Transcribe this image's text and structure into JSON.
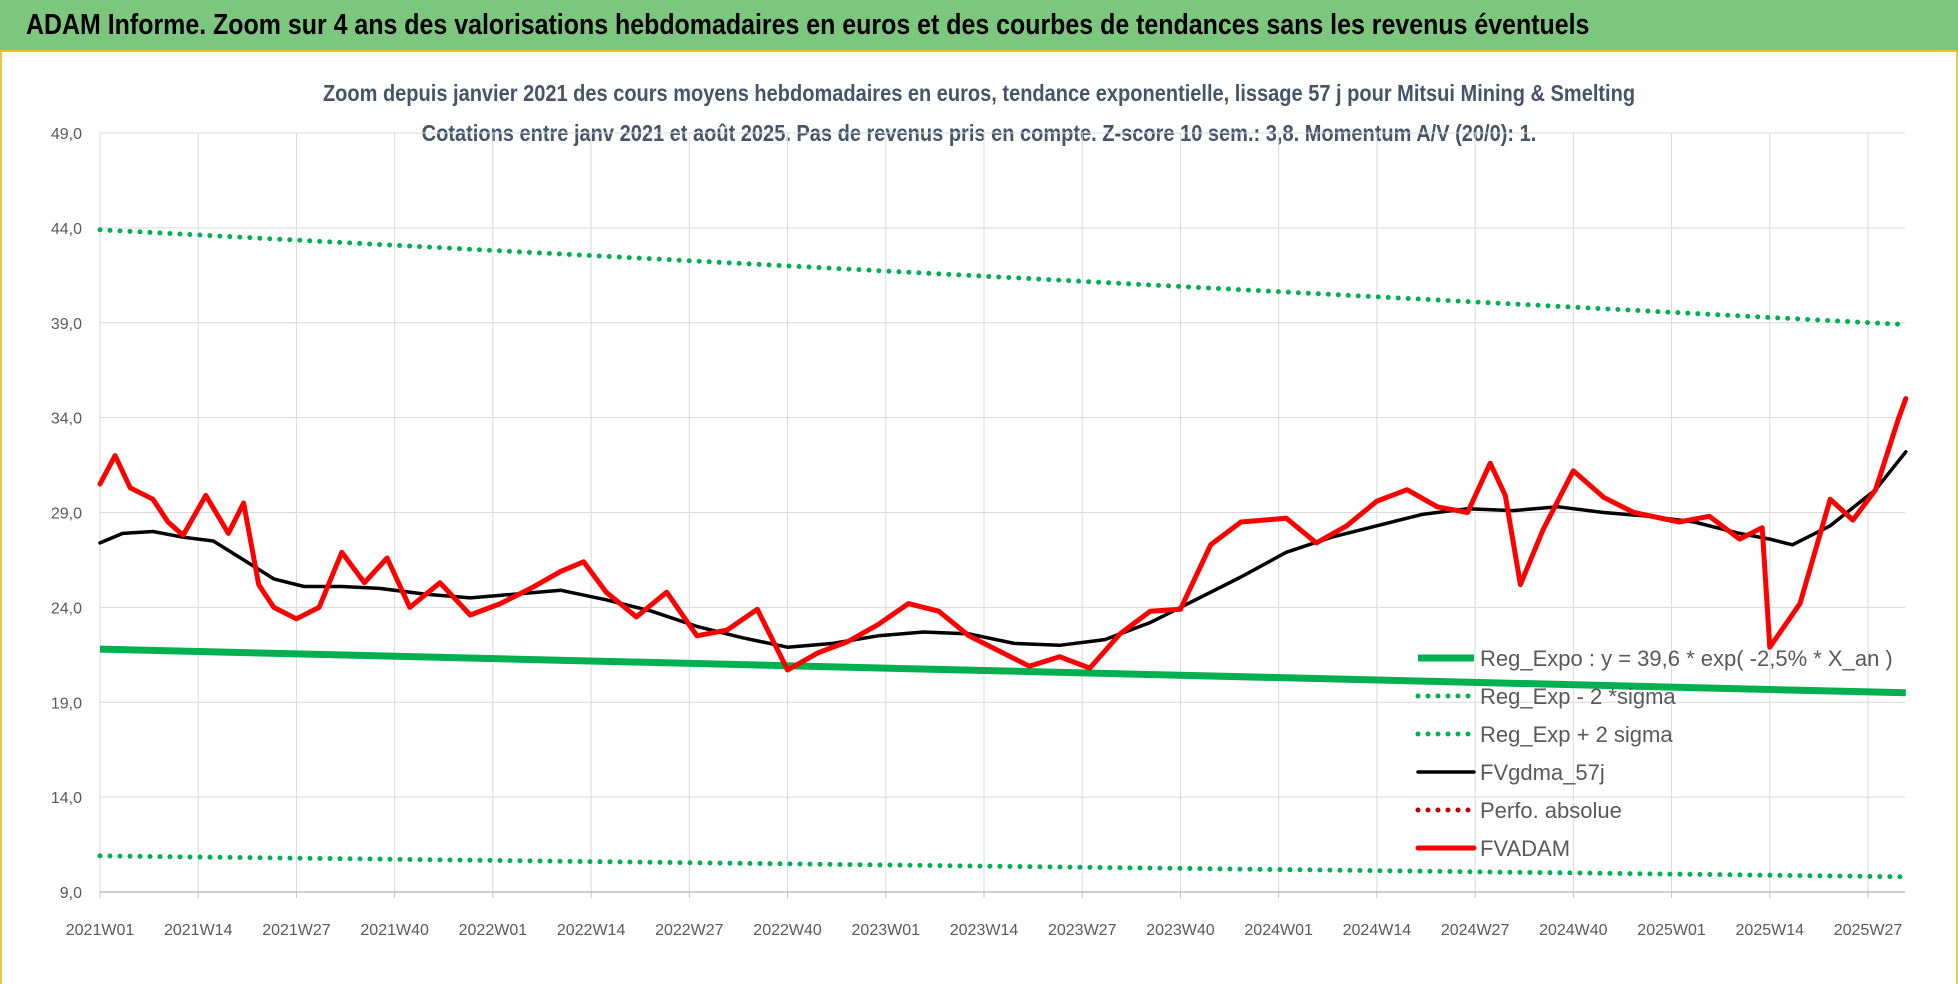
{
  "banner": {
    "title": "ADAM Informe. Zoom sur 4 ans des valorisations hebdomadaires en euros et des courbes de tendances sans les revenus éventuels"
  },
  "chart_data": {
    "type": "line",
    "title": "Zoom depuis janvier 2021 des cours moyens hebdomadaires en euros, tendance exponentielle, lissage 57 j pour Mitsui Mining & Smelting",
    "subtitle": "Cotations entre janv 2021 et août 2025.  Pas de revenus pris en compte. Z-score 10 sem.: 3,8. Momentum A/V (20/0): 1.",
    "xlabel": "",
    "ylabel": "",
    "ylim": [
      9,
      49
    ],
    "y_ticks": [
      "9,0",
      "14,0",
      "19,0",
      "24,0",
      "29,0",
      "34,0",
      "39,0",
      "44,0",
      "49,0"
    ],
    "x_tick_labels": [
      "2021W01",
      "2021W14",
      "2021W27",
      "2021W40",
      "2022W01",
      "2022W14",
      "2022W27",
      "2022W40",
      "2023W01",
      "2023W14",
      "2023W27",
      "2023W40",
      "2024W01",
      "2024W14",
      "2024W27",
      "2024W40",
      "2025W01",
      "2025W14",
      "2025W27"
    ],
    "grid": true,
    "legend_position": "bottom-right",
    "series": [
      {
        "name": "Reg_Expo : y = 39,6 * exp( -2,5% *  X_an )",
        "color": "#00b050",
        "style": "solid",
        "x": [
          "2021W01",
          "2025W32"
        ],
        "values": [
          21.8,
          19.5
        ]
      },
      {
        "name": "Reg_Exp - 2 *sigma",
        "color": "#00b050",
        "style": "dotted",
        "x": [
          "2021W01",
          "2025W32"
        ],
        "values": [
          10.9,
          9.8
        ]
      },
      {
        "name": "Reg_Exp + 2 sigma",
        "color": "#00b050",
        "style": "dotted",
        "x": [
          "2021W01",
          "2025W32"
        ],
        "values": [
          43.9,
          38.9
        ]
      },
      {
        "name": "FVgdma_57j",
        "color": "#000000",
        "style": "solid",
        "x": [
          "2021W01",
          "2021W04",
          "2021W08",
          "2021W12",
          "2021W16",
          "2021W20",
          "2021W24",
          "2021W28",
          "2021W33",
          "2021W38",
          "2021W44",
          "2021W50",
          "2022W04",
          "2022W10",
          "2022W16",
          "2022W22",
          "2022W28",
          "2022W34",
          "2022W40",
          "2022W46",
          "2022W52",
          "2023W06",
          "2023W12",
          "2023W18",
          "2023W24",
          "2023W30",
          "2023W36",
          "2023W42",
          "2023W48",
          "2024W02",
          "2024W08",
          "2024W14",
          "2024W20",
          "2024W26",
          "2024W32",
          "2024W38",
          "2024W44",
          "2024W50",
          "2025W04",
          "2025W10",
          "2025W14",
          "2025W17",
          "2025W22",
          "2025W28",
          "2025W32"
        ],
        "values": [
          27.4,
          27.9,
          28.0,
          27.7,
          27.5,
          26.5,
          25.5,
          25.1,
          25.1,
          25.0,
          24.7,
          24.5,
          24.7,
          24.9,
          24.4,
          23.8,
          23.0,
          22.4,
          21.9,
          22.1,
          22.5,
          22.7,
          22.6,
          22.1,
          22.0,
          22.3,
          23.2,
          24.4,
          25.6,
          26.9,
          27.7,
          28.3,
          28.9,
          29.2,
          29.1,
          29.3,
          29.0,
          28.8,
          28.5,
          27.9,
          27.6,
          27.3,
          28.3,
          30.2,
          32.2
        ]
      },
      {
        "name": "Perfo. absolue",
        "color": "#c00000",
        "style": "dotted",
        "x": [],
        "values": []
      },
      {
        "name": "FVADAM",
        "color": "#ff0000",
        "style": "solid",
        "x": [
          "2021W01",
          "2021W03",
          "2021W05",
          "2021W08",
          "2021W10",
          "2021W12",
          "2021W15",
          "2021W18",
          "2021W20",
          "2021W22",
          "2021W24",
          "2021W27",
          "2021W30",
          "2021W33",
          "2021W36",
          "2021W39",
          "2021W42",
          "2021W46",
          "2021W50",
          "2022W02",
          "2022W06",
          "2022W10",
          "2022W13",
          "2022W16",
          "2022W20",
          "2022W24",
          "2022W28",
          "2022W32",
          "2022W36",
          "2022W40",
          "2022W44",
          "2022W48",
          "2022W52",
          "2023W04",
          "2023W08",
          "2023W12",
          "2023W16",
          "2023W20",
          "2023W24",
          "2023W28",
          "2023W32",
          "2023W36",
          "2023W40",
          "2023W44",
          "2023W48",
          "2024W02",
          "2024W06",
          "2024W10",
          "2024W14",
          "2024W18",
          "2024W22",
          "2024W26",
          "2024W29",
          "2024W31",
          "2024W33",
          "2024W36",
          "2024W40",
          "2024W44",
          "2024W48",
          "2025W02",
          "2025W06",
          "2025W10",
          "2025W13",
          "2025W14",
          "2025W18",
          "2025W22",
          "2025W25",
          "2025W28",
          "2025W31",
          "2025W32"
        ],
        "values": [
          30.5,
          32.0,
          30.3,
          29.7,
          28.5,
          27.8,
          29.9,
          27.9,
          29.5,
          25.2,
          24.0,
          23.4,
          24.0,
          26.9,
          25.3,
          26.6,
          24.0,
          25.3,
          23.6,
          24.2,
          25.0,
          25.9,
          26.4,
          24.8,
          23.5,
          24.8,
          22.5,
          22.8,
          23.9,
          20.7,
          21.6,
          22.2,
          23.1,
          24.2,
          23.8,
          22.5,
          21.7,
          20.9,
          21.4,
          20.8,
          22.6,
          23.8,
          23.9,
          27.3,
          28.5,
          28.7,
          27.4,
          28.3,
          29.6,
          30.2,
          29.3,
          29.0,
          31.6,
          29.9,
          25.2,
          28.1,
          31.2,
          29.8,
          29.0,
          28.5,
          28.8,
          27.6,
          28.2,
          21.9,
          24.2,
          29.7,
          28.6,
          30.2,
          33.9,
          35.0
        ]
      }
    ]
  }
}
